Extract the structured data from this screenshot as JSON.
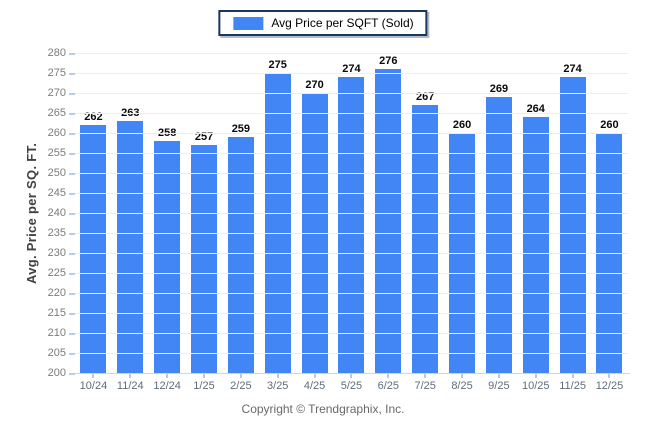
{
  "chart_data": {
    "type": "bar",
    "title": "Avg Price per SQFT (Sold)",
    "categories": [
      "10/24",
      "11/24",
      "12/24",
      "1/25",
      "2/25",
      "3/25",
      "4/25",
      "5/25",
      "6/25",
      "7/25",
      "8/25",
      "9/25",
      "10/25",
      "11/25",
      "12/25"
    ],
    "values": [
      262,
      263,
      258,
      257,
      259,
      275,
      270,
      274,
      276,
      267,
      260,
      269,
      264,
      274,
      260
    ],
    "xlabel": "",
    "ylabel": "Avg. Price per SQ. FT.",
    "ylim": [
      200,
      280
    ],
    "ytick_step": 5,
    "grid": "horizontal",
    "legend_position": "top-center",
    "bar_color": "#4285F4",
    "legend_border_color": "#17375E"
  },
  "footer": {
    "copyright": "Copyright © Trendgraphix, Inc."
  }
}
